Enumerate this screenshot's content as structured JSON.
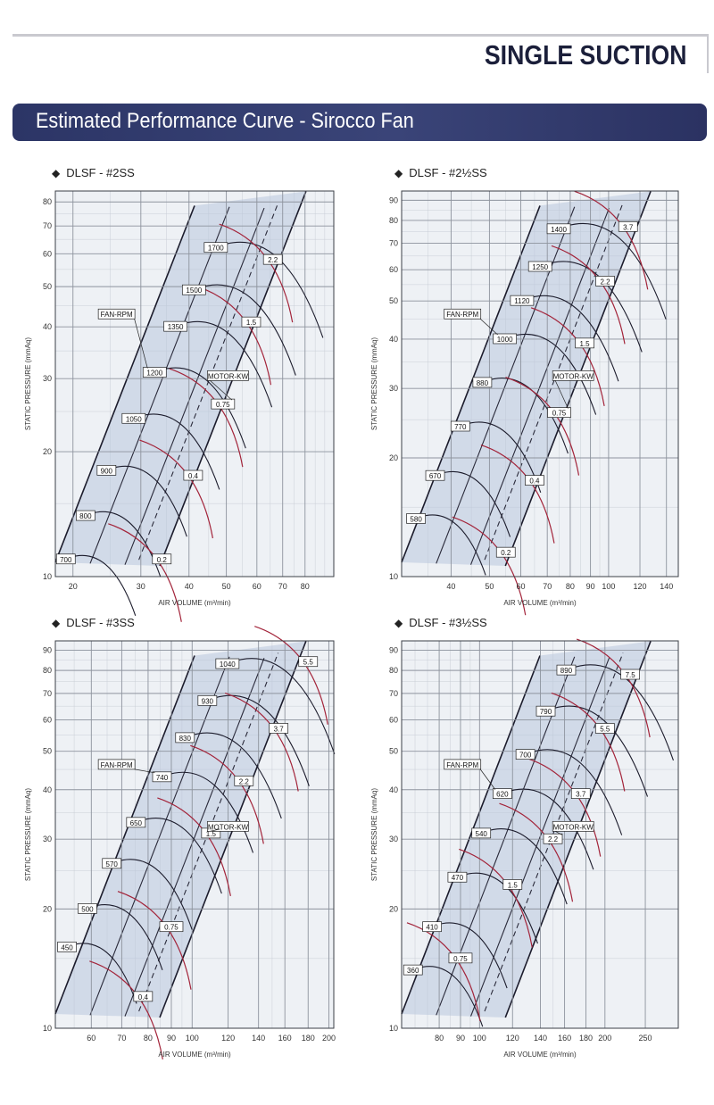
{
  "header": {
    "brand": "SINGLE SUCTION",
    "banner": "Estimated Performance Curve - Sirocco Fan"
  },
  "chart_data": [
    {
      "type": "line",
      "title": "DLSF - #2SS",
      "xlabel": "AIR VOLUME (m³/min)",
      "ylabel": "STATIC PRESSURE (mmAq)",
      "xscale": "log",
      "yscale": "log",
      "xlim": [
        18,
        95
      ],
      "ylim": [
        10,
        85
      ],
      "xticks": [
        20,
        30,
        40,
        50,
        60,
        70,
        80
      ],
      "yticks": [
        10,
        20,
        30,
        40,
        50,
        60,
        70,
        80
      ],
      "grid": true,
      "series": [
        {
          "name": "FAN-RPM",
          "labels": [
            "700",
            "800",
            "900",
            "1050",
            "1200",
            "1350",
            "1500",
            "1700"
          ],
          "x": [
            20,
            22.5,
            25.5,
            30,
            34,
            38.5,
            43,
            49
          ],
          "y": [
            11,
            14,
            18,
            24,
            31,
            40,
            49,
            62
          ]
        },
        {
          "name": "MOTOR-KW",
          "labels": [
            "0.2",
            "0.4",
            "0.75",
            "1.5",
            "2.2"
          ],
          "x": [
            34,
            41,
            49,
            58,
            66
          ],
          "y": [
            11,
            17.5,
            26,
            41,
            58
          ]
        }
      ]
    },
    {
      "type": "line",
      "title": "DLSF - #2½SS",
      "xlabel": "AIR VOLUME (m³/min)",
      "ylabel": "STATIC PRESSURE (mmAq)",
      "xscale": "log",
      "yscale": "log",
      "xlim": [
        30,
        150
      ],
      "ylim": [
        10,
        95
      ],
      "xticks": [
        40,
        50,
        60,
        70,
        80,
        90,
        100,
        120,
        140
      ],
      "yticks": [
        10,
        20,
        30,
        40,
        50,
        60,
        70,
        80,
        90
      ],
      "grid": true,
      "series": [
        {
          "name": "FAN-RPM",
          "labels": [
            "580",
            "670",
            "770",
            "880",
            "1000",
            "1120",
            "1250",
            "1400"
          ],
          "x": [
            34,
            38,
            44,
            50,
            57,
            63,
            70,
            78
          ],
          "y": [
            14,
            18,
            24,
            31,
            40,
            50,
            61,
            76
          ]
        },
        {
          "name": "MOTOR-KW",
          "labels": [
            "0.2",
            "0.4",
            "0.75",
            "1.5",
            "2.2",
            "3.7"
          ],
          "x": [
            55,
            65,
            75,
            87,
            98,
            112
          ],
          "y": [
            11.5,
            17.5,
            26,
            39,
            56,
            77
          ]
        }
      ]
    },
    {
      "type": "line",
      "title": "DLSF - #3SS",
      "xlabel": "AIR VOLUME (m³/min)",
      "ylabel": "STATIC PRESSURE (mmAq)",
      "xscale": "log",
      "yscale": "log",
      "xlim": [
        50,
        205
      ],
      "ylim": [
        10,
        95
      ],
      "xticks": [
        60,
        70,
        80,
        90,
        100,
        120,
        140,
        160,
        180,
        200
      ],
      "yticks": [
        10,
        20,
        30,
        40,
        50,
        60,
        70,
        80,
        90
      ],
      "grid": true,
      "series": [
        {
          "name": "FAN-RPM",
          "labels": [
            "450",
            "500",
            "570",
            "650",
            "740",
            "830",
            "930",
            "1040"
          ],
          "x": [
            55,
            61,
            69,
            78,
            89,
            100,
            112,
            124
          ],
          "y": [
            16,
            20,
            26,
            33,
            43,
            54,
            67,
            83
          ]
        },
        {
          "name": "MOTOR-KW",
          "labels": [
            "0.4",
            "0.75",
            "1.5",
            "2.2",
            "3.7",
            "5.5"
          ],
          "x": [
            78,
            90,
            110,
            130,
            155,
            180
          ],
          "y": [
            12,
            18,
            31,
            42,
            57,
            84
          ]
        }
      ]
    },
    {
      "type": "line",
      "title": "DLSF - #3½SS",
      "xlabel": "AIR VOLUME (m³/min)",
      "ylabel": "STATIC PRESSURE (mmAq)",
      "xscale": "log",
      "yscale": "log",
      "xlim": [
        65,
        300
      ],
      "ylim": [
        10,
        95
      ],
      "xticks": [
        80,
        90,
        100,
        120,
        140,
        160,
        180,
        200,
        250
      ],
      "yticks": [
        10,
        20,
        30,
        40,
        50,
        60,
        70,
        80,
        90
      ],
      "grid": true,
      "series": [
        {
          "name": "FAN-RPM",
          "labels": [
            "360",
            "410",
            "470",
            "540",
            "620",
            "700",
            "790",
            "890"
          ],
          "x": [
            72,
            80,
            92,
            105,
            118,
            134,
            150,
            168
          ],
          "y": [
            14,
            18,
            24,
            31,
            39,
            49,
            63,
            80
          ]
        },
        {
          "name": "MOTOR-KW",
          "labels": [
            "0.75",
            "1.5",
            "2.2",
            "3.7",
            "5.5",
            "7.5"
          ],
          "x": [
            90,
            120,
            150,
            175,
            200,
            230
          ],
          "y": [
            15,
            23,
            30,
            39,
            57,
            78
          ]
        }
      ]
    }
  ]
}
